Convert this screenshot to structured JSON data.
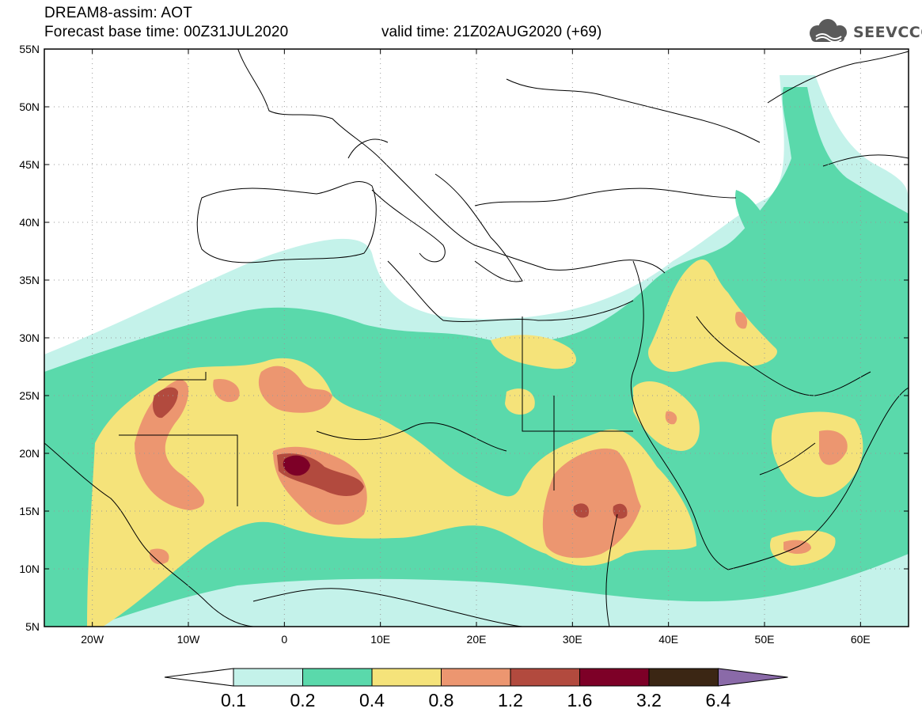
{
  "header": {
    "line1": "DREAM8-assim: AOT",
    "line2": "Forecast base time: 00Z31JUL2020",
    "valid": "valid time: 21Z02AUG2020 (+69)",
    "logo": "SEEVCCC"
  },
  "map": {
    "lat_range": [
      5,
      55
    ],
    "lon_range": [
      -25,
      65
    ],
    "lat_ticks": [
      {
        "value": 55,
        "label": "55N"
      },
      {
        "value": 50,
        "label": "50N"
      },
      {
        "value": 45,
        "label": "45N"
      },
      {
        "value": 40,
        "label": "40N"
      },
      {
        "value": 35,
        "label": "35N"
      },
      {
        "value": 30,
        "label": "30N"
      },
      {
        "value": 25,
        "label": "25N"
      },
      {
        "value": 20,
        "label": "20N"
      },
      {
        "value": 15,
        "label": "15N"
      },
      {
        "value": 10,
        "label": "10N"
      },
      {
        "value": 5,
        "label": "5N"
      }
    ],
    "lon_ticks": [
      {
        "value": -20,
        "label": "20W"
      },
      {
        "value": -10,
        "label": "10W"
      },
      {
        "value": 0,
        "label": "0"
      },
      {
        "value": 10,
        "label": "10E"
      },
      {
        "value": 20,
        "label": "20E"
      },
      {
        "value": 30,
        "label": "30E"
      },
      {
        "value": 40,
        "label": "40E"
      },
      {
        "value": 50,
        "label": "50E"
      },
      {
        "value": 60,
        "label": "60E"
      }
    ]
  },
  "colorbar": {
    "levels": [
      "0.1",
      "0.2",
      "0.4",
      "0.8",
      "1.2",
      "1.6",
      "3.2",
      "6.4"
    ],
    "colors": [
      "#ffffff",
      "#c4f2ea",
      "#5ad9ab",
      "#f5e37a",
      "#ec9670",
      "#b24a3e",
      "#7d0027",
      "#3b2614",
      "#8a6aa8"
    ]
  }
}
